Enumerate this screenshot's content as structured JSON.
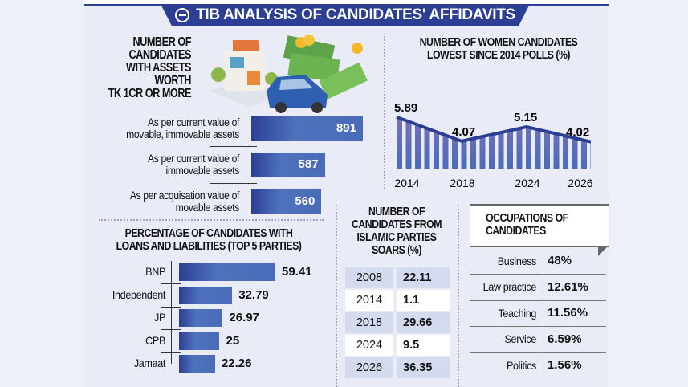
{
  "header": {
    "title": "TIB ANALYSIS OF CANDIDATES' AFFIDAVITS",
    "logo_icon": "tib-globe-icon"
  },
  "colors": {
    "accent": "#2c3f94",
    "bar": "#4a6cb8",
    "background": "#e9ecf7"
  },
  "chart_data": [
    {
      "type": "bar",
      "orientation": "horizontal",
      "title": "NUMBER OF CANDIDATES WITH ASSETS WORTH TK 1CR OR MORE",
      "categories": [
        "As per current value of movable, immovable assets",
        "As per current value of immovable assets",
        "As per acquisation value of movable assets"
      ],
      "values": [
        891,
        587,
        560
      ],
      "value_labels": [
        "891",
        "587",
        "560"
      ]
    },
    {
      "type": "line",
      "title": "NUMBER OF WOMEN CANDIDATES LOWEST SINCE 2014 POLLS (%)",
      "x": [
        "2014",
        "2018",
        "2024",
        "2026"
      ],
      "values": [
        5.89,
        4.07,
        5.15,
        4.02
      ],
      "value_labels": [
        "5.89",
        "4.07",
        "5.15",
        "4.02"
      ]
    },
    {
      "type": "bar",
      "orientation": "horizontal",
      "title": "PERCENTAGE OF CANDIDATES WITH LOANS AND LIABILITIES (TOP 5 PARTIES)",
      "categories": [
        "BNP",
        "Independent",
        "JP",
        "CPB",
        "Jamaat"
      ],
      "values": [
        59.41,
        32.79,
        26.97,
        25,
        22.26
      ],
      "value_labels": [
        "59.41",
        "32.79",
        "26.97",
        "25",
        "22.26"
      ]
    },
    {
      "type": "table",
      "title": "NUMBER OF CANDIDATES FROM ISLAMIC PARTIES SOARS (%)",
      "rows": [
        [
          "2008",
          "22.11"
        ],
        [
          "2014",
          "1.1"
        ],
        [
          "2018",
          "29.66"
        ],
        [
          "2024",
          "9.5"
        ],
        [
          "2026",
          "36.35"
        ]
      ]
    },
    {
      "type": "table",
      "title": "OCCUPATIONS OF CANDIDATES",
      "rows": [
        [
          "Business",
          "48%"
        ],
        [
          "Law practice",
          "12.61%"
        ],
        [
          "Teaching",
          "11.56%"
        ],
        [
          "Service",
          "6.59%"
        ],
        [
          "Politics",
          "1.56%"
        ]
      ]
    }
  ],
  "assets_title_lines": [
    "NUMBER OF",
    "CANDIDATES",
    "WITH ASSETS",
    "WORTH",
    "TK 1CR OR MORE"
  ],
  "asset_label_lines": [
    [
      "As per current value of",
      "movable, immovable assets"
    ],
    [
      "As per current value of",
      "immovable assets"
    ],
    [
      "As per acquisation value of",
      "movable assets"
    ]
  ],
  "women_title_lines": [
    "NUMBER OF WOMEN CANDIDATES",
    "LOWEST SINCE 2014 POLLS (%)"
  ],
  "loans_title_lines": [
    "PERCENTAGE OF CANDIDATES WITH",
    "LOANS AND LIABILITIES (TOP 5 PARTIES)"
  ],
  "islamic_title_lines": [
    "NUMBER OF",
    "CANDIDATES FROM",
    "ISLAMIC PARTIES",
    "SOARS (%)"
  ],
  "occupations_title_lines": [
    "OCCUPATIONS OF",
    "CANDIDATES"
  ],
  "illustration": "house-car-money-illustration"
}
